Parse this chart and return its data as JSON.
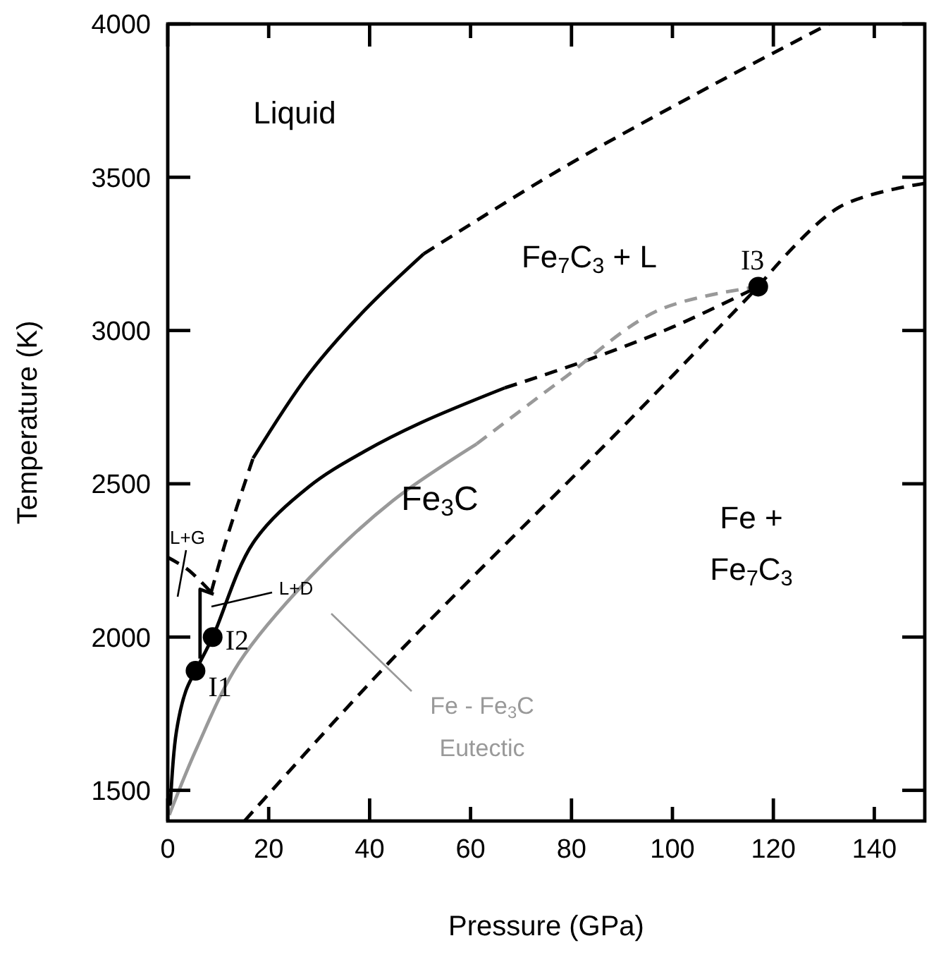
{
  "chart_data": {
    "type": "line",
    "xlabel": "Pressure (GPa)",
    "ylabel": "Temperature (K)",
    "xlim": [
      0,
      150
    ],
    "ylim": [
      1400,
      4000
    ],
    "xticks": [
      0,
      20,
      40,
      60,
      80,
      100,
      120,
      140
    ],
    "yticks": [
      1500,
      2000,
      2500,
      3000,
      3500,
      4000
    ],
    "series": [
      {
        "color": "#000000",
        "line_style": "dashed",
        "x": [
          8.6,
          11.4,
          16.9
        ],
        "values": [
          2146,
          2307,
          2583
        ]
      },
      {
        "color": "#000000",
        "line_style": "solid",
        "x": [
          16.9,
          28,
          39,
          50.7
        ],
        "values": [
          2583,
          2859,
          3066,
          3250
        ]
      },
      {
        "color": "#000000",
        "line_style": "dashed",
        "x": [
          50.7,
          77.8,
          105.5,
          131
        ],
        "values": [
          3250,
          3526,
          3779,
          4000
        ]
      },
      {
        "color": "#000000",
        "line_style": "solid",
        "x": [
          0.5,
          1.7,
          3.6,
          5.5,
          8.9,
          16.9,
          28,
          39,
          50,
          66.8
        ],
        "values": [
          1450,
          1690,
          1825,
          1890,
          2000,
          2307,
          2491,
          2606,
          2698,
          2813
        ]
      },
      {
        "color": "#000000",
        "line_style": "dashed",
        "x": [
          66.8,
          83.4,
          100,
          117
        ],
        "values": [
          2813,
          2905,
          3011,
          3143
        ]
      },
      {
        "color": "#000000",
        "line_style": "dashed",
        "x": [
          117,
          133,
          150
        ],
        "values": [
          3143,
          3402,
          3480
        ]
      },
      {
        "color": "#000000",
        "line_style": "dashed",
        "x": [
          15.2,
          44.6,
          90.9,
          117
        ],
        "values": [
          1400,
          1930,
          2698,
          3143
        ]
      },
      {
        "color": "#999999",
        "line_style": "solid",
        "x": [
          0.3,
          5.8,
          14.1,
          28,
          44.6,
          61.2
        ],
        "values": [
          1420,
          1640,
          1916,
          2192,
          2445,
          2630
        ]
      },
      {
        "color": "#999999",
        "line_style": "dashed",
        "x": [
          61.2,
          77.8,
          97.2,
          117
        ],
        "values": [
          2630,
          2836,
          3066,
          3143
        ]
      },
      {
        "color": "#000000",
        "line_style": "dashed",
        "x": [
          0,
          4,
          8.6
        ],
        "values": [
          2260,
          2220,
          2146
        ]
      },
      {
        "color": "#000000",
        "line_style": "solid",
        "x": [
          6.4,
          6.4,
          9.1
        ],
        "values": [
          1930,
          2156,
          2140
        ]
      },
      {
        "type": "scatter",
        "marker": "circle",
        "color": "#000000",
        "x": [
          5.5,
          8.9,
          117
        ],
        "values": [
          1890,
          2000,
          3143
        ],
        "value_labels": [
          "I1",
          "I2",
          "I3"
        ]
      }
    ],
    "annotations": [
      "Liquid",
      "Fe$_{7}$C$_{3}$ + L",
      "Fe$_{3}$C",
      "Fe +\nFe$_{7}$C$_{3}$",
      "L+G",
      "L+D",
      "Fe - Fe$_{3}$C\nEutectic"
    ]
  }
}
